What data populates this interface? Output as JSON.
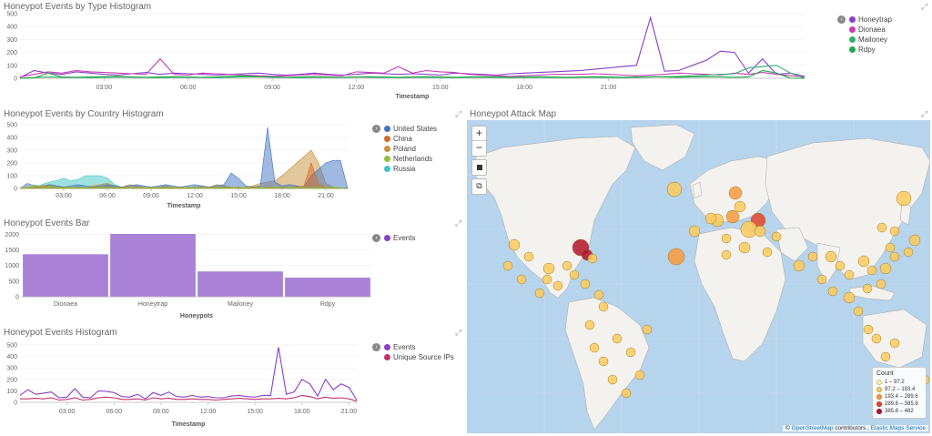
{
  "panels": {
    "type_hist": {
      "title": "Honeypot Events by Type Histogram",
      "legend": [
        {
          "label": "Honeytrap",
          "color": "#8a3fc8"
        },
        {
          "label": "Dionaea",
          "color": "#c93cb4"
        },
        {
          "label": "Mailoney",
          "color": "#2fb36d"
        },
        {
          "label": "Rdpy",
          "color": "#22a84a"
        }
      ]
    },
    "country_hist": {
      "title": "Honeypot Events by Country Histogram",
      "legend": [
        {
          "label": "United States",
          "color": "#3f74c2"
        },
        {
          "label": "China",
          "color": "#d46a2a"
        },
        {
          "label": "Poland",
          "color": "#c79139"
        },
        {
          "label": "Netherlands",
          "color": "#8cc43a"
        },
        {
          "label": "Russia",
          "color": "#3cc6c4"
        }
      ]
    },
    "events_bar": {
      "title": "Honeypot Events Bar",
      "legend": [
        {
          "label": "Events",
          "color": "#8a3fc8"
        }
      ]
    },
    "events_hist": {
      "title": "Honeypot Events Histogram",
      "legend": [
        {
          "label": "Events",
          "color": "#8a3fc8"
        },
        {
          "label": "Unique Source IPs",
          "color": "#c2306e"
        }
      ]
    },
    "attack_map": {
      "title": "Honeypot Attack Map",
      "zoom_in": "+",
      "zoom_out": "−",
      "legend_title": "Count",
      "legend": [
        {
          "label": "1 – 97.2",
          "color": "#fff3a8"
        },
        {
          "label": "97.2 – 193.4",
          "color": "#fdcb5a"
        },
        {
          "label": "193.4 – 289.6",
          "color": "#f99a3b"
        },
        {
          "label": "289.6 – 385.8",
          "color": "#e6452a"
        },
        {
          "label": "385.8 – 482",
          "color": "#b4132a"
        }
      ],
      "attribution_prefix": "© ",
      "attribution_osm": "OpenStreetMap",
      "attribution_mid": " contributors , ",
      "attribution_ems": "Elastic Maps Service"
    }
  },
  "chart_data": [
    {
      "type": "line",
      "title": "Honeypot Events by Type Histogram",
      "xlabel": "Timestamp",
      "ylabel": "",
      "x_ticks": [
        "03:00",
        "06:00",
        "09:00",
        "12:00",
        "15:00",
        "18:00",
        "21:00"
      ],
      "y_ticks": [
        0,
        100,
        200,
        300,
        400,
        500
      ],
      "ylim": [
        0,
        500
      ],
      "x_start_hour": 0,
      "x_step_hours": 0.5,
      "series": [
        {
          "name": "Honeytrap",
          "color": "#8a3fc8",
          "values": [
            5,
            60,
            40,
            30,
            50,
            40,
            30,
            25,
            35,
            45,
            30,
            40,
            35,
            30,
            25,
            30,
            35,
            40,
            30,
            25,
            30,
            40,
            30,
            25,
            30,
            40,
            35,
            30,
            35,
            30,
            25,
            40,
            35,
            30,
            25,
            35,
            40,
            45,
            50,
            55,
            60,
            70,
            80,
            90,
            100,
            470,
            55,
            60,
            100,
            140,
            210,
            200,
            40,
            150,
            30,
            40,
            15
          ]
        },
        {
          "name": "Dionaea",
          "color": "#c93cb4",
          "values": [
            10,
            30,
            50,
            40,
            60,
            50,
            45,
            40,
            35,
            30,
            150,
            30,
            25,
            40,
            35,
            30,
            25,
            20,
            15,
            20,
            25,
            30,
            25,
            20,
            50,
            45,
            40,
            90,
            40,
            60,
            50,
            45,
            30,
            25,
            20,
            15,
            20,
            25,
            30,
            30,
            30,
            35,
            30,
            25,
            20,
            25,
            30,
            40,
            35,
            30,
            25,
            40,
            30,
            45,
            30,
            20,
            10
          ]
        },
        {
          "name": "Mailoney",
          "color": "#2fb36d",
          "values": [
            0,
            5,
            10,
            8,
            6,
            5,
            7,
            10,
            8,
            6,
            5,
            7,
            8,
            6,
            5,
            7,
            10,
            12,
            8,
            6,
            5,
            7,
            8,
            6,
            10,
            8,
            6,
            5,
            7,
            8,
            6,
            5,
            7,
            8,
            6,
            5,
            7,
            8,
            6,
            5,
            7,
            8,
            6,
            5,
            7,
            10,
            12,
            15,
            20,
            25,
            30,
            35,
            80,
            90,
            100,
            40,
            0
          ]
        },
        {
          "name": "Rdpy",
          "color": "#22a84a",
          "values": [
            0,
            3,
            40,
            10,
            8,
            10,
            12,
            15,
            10,
            8,
            10,
            12,
            10,
            8,
            10,
            15,
            20,
            12,
            10,
            8,
            10,
            12,
            10,
            8,
            10,
            12,
            10,
            8,
            10,
            12,
            10,
            8,
            10,
            12,
            10,
            8,
            10,
            12,
            10,
            8,
            10,
            12,
            10,
            8,
            10,
            12,
            10,
            8,
            10,
            12,
            10,
            8,
            10,
            60,
            40,
            0,
            0
          ]
        }
      ]
    },
    {
      "type": "area",
      "title": "Honeypot Events by Country Histogram",
      "xlabel": "Timestamp",
      "ylabel": "",
      "x_ticks": [
        "03:00",
        "06:00",
        "09:00",
        "12:00",
        "15:00",
        "18:00",
        "21:00"
      ],
      "y_ticks": [
        0,
        100,
        200,
        300,
        400,
        500
      ],
      "ylim": [
        0,
        500
      ],
      "x_start_hour": 0,
      "x_step_hours": 0.5,
      "series": [
        {
          "name": "Russia",
          "color": "#3cc6c4",
          "values": [
            0,
            5,
            10,
            30,
            50,
            60,
            80,
            60,
            70,
            100,
            100,
            100,
            80,
            30,
            10,
            5,
            5,
            5,
            5,
            5,
            5,
            5,
            5,
            5,
            5,
            5,
            5,
            5,
            5,
            5,
            5,
            5,
            5,
            5,
            5,
            5,
            5,
            5,
            5,
            5,
            5,
            5,
            5,
            5,
            5,
            5
          ]
        },
        {
          "name": "Poland",
          "color": "#c79139",
          "values": [
            0,
            5,
            10,
            20,
            30,
            20,
            10,
            5,
            10,
            5,
            20,
            30,
            40,
            20,
            10,
            30,
            20,
            10,
            5,
            10,
            20,
            10,
            5,
            10,
            5,
            20,
            10,
            30,
            20,
            10,
            5,
            10,
            20,
            40,
            50,
            60,
            100,
            150,
            200,
            250,
            300,
            200,
            40,
            10,
            5,
            0
          ]
        },
        {
          "name": "United States",
          "color": "#3f74c2",
          "values": [
            0,
            40,
            20,
            10,
            30,
            20,
            10,
            20,
            30,
            20,
            10,
            20,
            30,
            20,
            10,
            20,
            30,
            20,
            10,
            20,
            30,
            20,
            10,
            20,
            30,
            20,
            10,
            20,
            30,
            120,
            80,
            20,
            10,
            20,
            480,
            50,
            20,
            30,
            20,
            10,
            100,
            150,
            200,
            220,
            220,
            0
          ]
        },
        {
          "name": "China",
          "color": "#d46a2a",
          "values": [
            0,
            10,
            5,
            20,
            10,
            5,
            10,
            5,
            10,
            5,
            10,
            5,
            10,
            5,
            10,
            5,
            10,
            5,
            10,
            5,
            10,
            5,
            10,
            5,
            10,
            5,
            10,
            5,
            10,
            5,
            10,
            5,
            10,
            5,
            10,
            5,
            10,
            5,
            10,
            20,
            200,
            30,
            10,
            5,
            5,
            0
          ]
        },
        {
          "name": "Netherlands",
          "color": "#8cc43a",
          "values": [
            0,
            5,
            30,
            10,
            20,
            10,
            5,
            10,
            5,
            10,
            5,
            10,
            5,
            10,
            5,
            10,
            5,
            10,
            5,
            10,
            5,
            10,
            5,
            10,
            5,
            10,
            5,
            10,
            5,
            10,
            5,
            10,
            5,
            10,
            5,
            10,
            5,
            10,
            5,
            10,
            5,
            10,
            5,
            10,
            5,
            0
          ]
        }
      ]
    },
    {
      "type": "bar",
      "title": "Honeypot Events Bar",
      "categories": [
        "Dionaea",
        "Honeytrap",
        "Mailoney",
        "Rdpy"
      ],
      "values": [
        1350,
        2000,
        800,
        600
      ],
      "xlabel": "Honeypots",
      "ylabel": "",
      "y_ticks": [
        0,
        500,
        1000,
        1500,
        2000
      ],
      "ylim": [
        0,
        2100
      ],
      "color": "#a982d8"
    },
    {
      "type": "line",
      "title": "Honeypot Events Histogram",
      "xlabel": "Timestamp",
      "ylabel": "",
      "x_ticks": [
        "03:00",
        "06:00",
        "09:00",
        "12:00",
        "15:00",
        "18:00",
        "21:00"
      ],
      "y_ticks": [
        0,
        100,
        200,
        300,
        400,
        500
      ],
      "ylim": [
        0,
        500
      ],
      "x_start_hour": 0,
      "x_step_hours": 0.5,
      "series": [
        {
          "name": "Events",
          "color": "#8a3fc8",
          "values": [
            60,
            110,
            70,
            80,
            90,
            40,
            45,
            120,
            45,
            40,
            100,
            95,
            85,
            50,
            45,
            70,
            30,
            85,
            60,
            90,
            50,
            45,
            60,
            45,
            50,
            40,
            40,
            55,
            60,
            50,
            45,
            60,
            60,
            480,
            70,
            90,
            200,
            160,
            55,
            200,
            110,
            160,
            130,
            20
          ]
        },
        {
          "name": "Unique Source IPs",
          "color": "#c2306e",
          "values": [
            30,
            30,
            35,
            30,
            40,
            20,
            25,
            40,
            20,
            25,
            40,
            45,
            40,
            25,
            25,
            30,
            20,
            40,
            30,
            35,
            25,
            25,
            30,
            25,
            25,
            20,
            25,
            30,
            35,
            30,
            25,
            30,
            30,
            35,
            30,
            40,
            60,
            50,
            30,
            45,
            35,
            40,
            30,
            10
          ]
        }
      ]
    }
  ]
}
